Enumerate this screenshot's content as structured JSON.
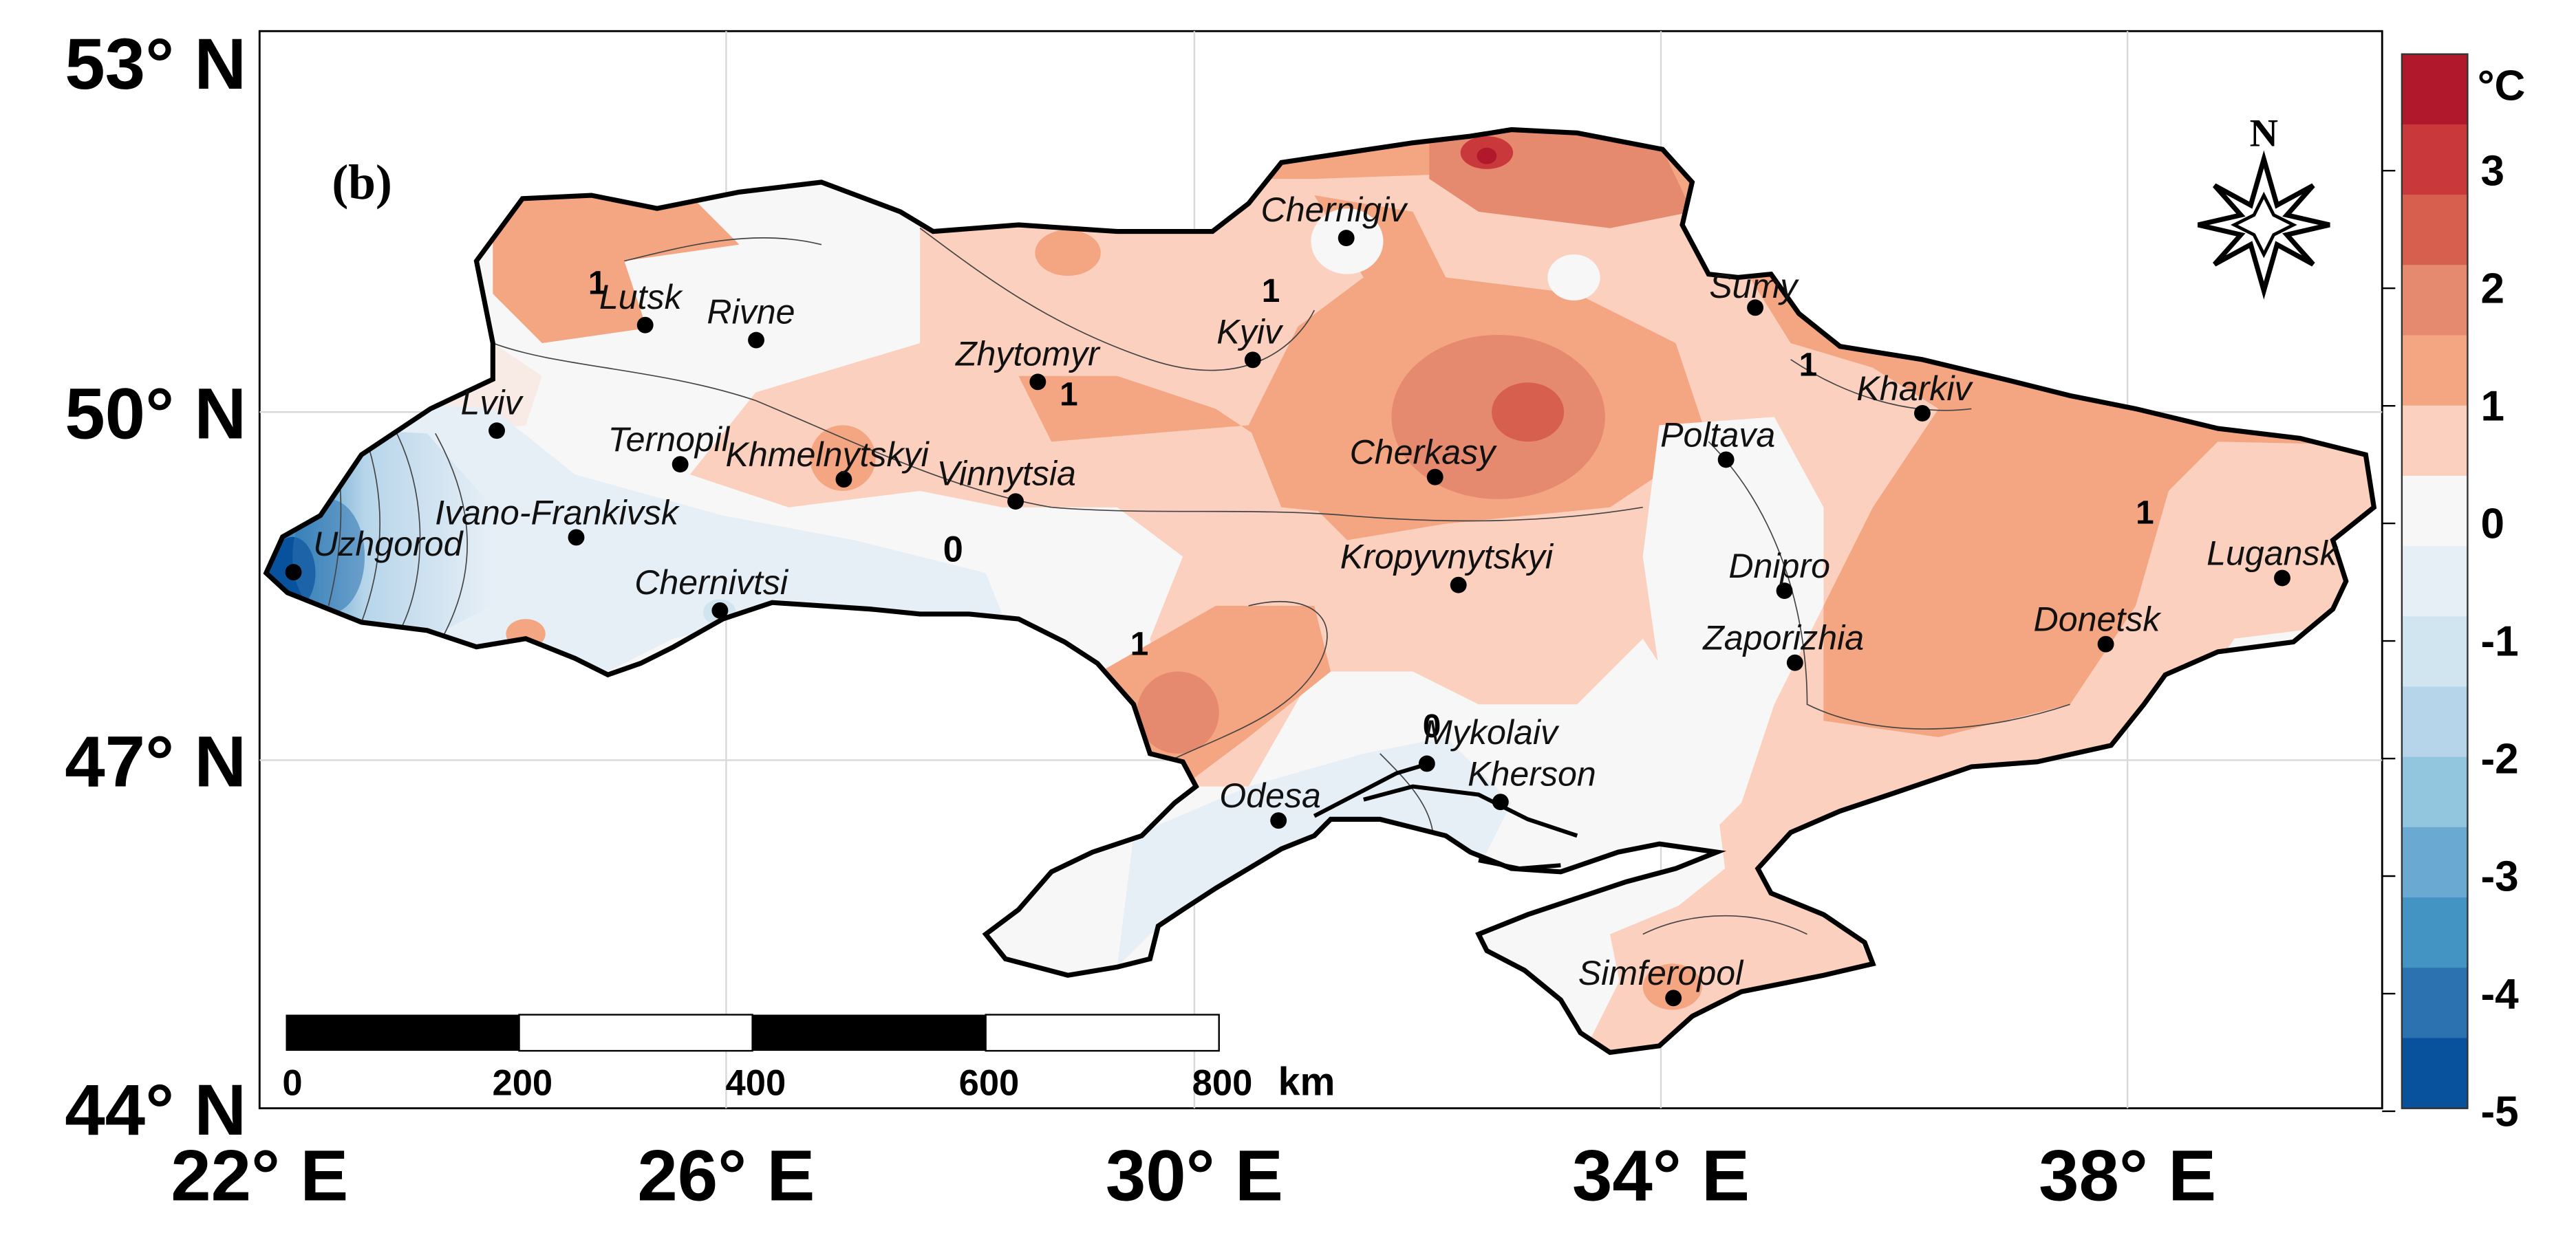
{
  "panel_label": "(b)",
  "north_label": "N",
  "lat_labels": [
    "53° N",
    "50° N",
    "47° N",
    "44° N"
  ],
  "lon_labels": [
    "22° E",
    "26° E",
    "30° E",
    "34° E",
    "38° E"
  ],
  "scale_bar": {
    "ticks": [
      "0",
      "200",
      "400",
      "600",
      "800"
    ],
    "unit": "km"
  },
  "colorbar": {
    "unit": "°C",
    "labels": [
      "3",
      "2",
      "1",
      "0",
      "-1",
      "-2",
      "-3",
      "-4",
      "-5"
    ],
    "colors": [
      "#b2182b",
      "#c9393c",
      "#d6604d",
      "#e58a6f",
      "#f4a582",
      "#fbd0bf",
      "#f7f7f7",
      "#e6eff6",
      "#d1e5f0",
      "#b7d5ea",
      "#92c5de",
      "#6aaad2",
      "#4393c3",
      "#2d72b0",
      "#08519c"
    ]
  },
  "contour_labels": [
    "1",
    "1",
    "1",
    "1",
    "1",
    "0",
    "0"
  ],
  "cities": [
    {
      "name": "Chernigiv",
      "lon": 31.3,
      "lat": 51.5
    },
    {
      "name": "Lutsk",
      "lon": 25.3,
      "lat": 50.75
    },
    {
      "name": "Rivne",
      "lon": 26.25,
      "lat": 50.62
    },
    {
      "name": "Sumy",
      "lon": 34.8,
      "lat": 50.9
    },
    {
      "name": "Kyiv",
      "lon": 30.5,
      "lat": 50.45
    },
    {
      "name": "Zhytomyr",
      "lon": 28.66,
      "lat": 50.26
    },
    {
      "name": "Kharkiv",
      "lon": 36.23,
      "lat": 49.99
    },
    {
      "name": "Lviv",
      "lon": 24.03,
      "lat": 49.84
    },
    {
      "name": "Ternopil",
      "lon": 25.6,
      "lat": 49.55
    },
    {
      "name": "Khmelnytskyi",
      "lon": 27.0,
      "lat": 49.42
    },
    {
      "name": "Cherkasy",
      "lon": 32.06,
      "lat": 49.44
    },
    {
      "name": "Poltava",
      "lon": 34.55,
      "lat": 49.59
    },
    {
      "name": "Vinnytsia",
      "lon": 28.47,
      "lat": 49.23
    },
    {
      "name": "Ivano-Frankivsk",
      "lon": 24.71,
      "lat": 48.92
    },
    {
      "name": "Uzhgorod",
      "lon": 22.29,
      "lat": 48.62
    },
    {
      "name": "Kropyvnytskyi",
      "lon": 32.26,
      "lat": 48.51
    },
    {
      "name": "Dnipro",
      "lon": 35.05,
      "lat": 48.46
    },
    {
      "name": "Lugansk",
      "lon": 39.31,
      "lat": 48.57
    },
    {
      "name": "Chernivtsi",
      "lon": 25.94,
      "lat": 48.29
    },
    {
      "name": "Zaporizhia",
      "lon": 35.14,
      "lat": 47.84
    },
    {
      "name": "Donetsk",
      "lon": 37.8,
      "lat": 48.0
    },
    {
      "name": "Mykolaiv",
      "lon": 31.99,
      "lat": 46.97
    },
    {
      "name": "Kherson",
      "lon": 32.62,
      "lat": 46.64
    },
    {
      "name": "Odesa",
      "lon": 30.72,
      "lat": 46.48
    },
    {
      "name": "Simferopol",
      "lon": 34.1,
      "lat": 44.95
    }
  ]
}
